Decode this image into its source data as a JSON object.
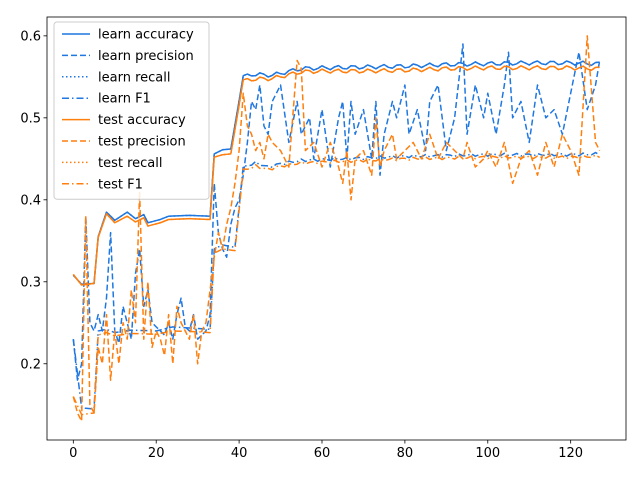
{
  "chart_data": {
    "type": "line",
    "title": "",
    "xlabel": "",
    "ylabel": "",
    "xlim": [
      -6.35,
      133.35
    ],
    "ylim": [
      0.107,
      0.623
    ],
    "xticks": [
      0,
      20,
      40,
      60,
      80,
      100,
      120
    ],
    "yticks": [
      0.2,
      0.3,
      0.4,
      0.5,
      0.6
    ],
    "grid": false,
    "legend": "upper-left",
    "colors": {
      "learn": "#1f77e0",
      "test": "#ff7f0e"
    },
    "anchors": {
      "learn_accuracy": [
        [
          0,
          0.308
        ],
        [
          2,
          0.297
        ],
        [
          5,
          0.298
        ],
        [
          6,
          0.355
        ],
        [
          8,
          0.385
        ],
        [
          10,
          0.375
        ],
        [
          13,
          0.385
        ],
        [
          15,
          0.377
        ],
        [
          17,
          0.382
        ],
        [
          18,
          0.372
        ],
        [
          21,
          0.376
        ],
        [
          23,
          0.38
        ],
        [
          28,
          0.381
        ],
        [
          33,
          0.38
        ],
        [
          34,
          0.456
        ],
        [
          36,
          0.461
        ],
        [
          38,
          0.462
        ],
        [
          41,
          0.55
        ],
        [
          43,
          0.553
        ],
        [
          48,
          0.552
        ],
        [
          55,
          0.56
        ],
        [
          60,
          0.561
        ],
        [
          70,
          0.562
        ],
        [
          80,
          0.563
        ],
        [
          90,
          0.565
        ],
        [
          100,
          0.566
        ],
        [
          110,
          0.567
        ],
        [
          120,
          0.567
        ],
        [
          127,
          0.566
        ]
      ],
      "learn_precision": [
        [
          0,
          0.23
        ],
        [
          1,
          0.18
        ],
        [
          2,
          0.2
        ],
        [
          3,
          0.38
        ],
        [
          4,
          0.25
        ],
        [
          5,
          0.24
        ],
        [
          6,
          0.26
        ],
        [
          7,
          0.24
        ],
        [
          8,
          0.28
        ],
        [
          9,
          0.36
        ],
        [
          10,
          0.24
        ],
        [
          11,
          0.225
        ],
        [
          12,
          0.27
        ],
        [
          13,
          0.25
        ],
        [
          14,
          0.23
        ],
        [
          15,
          0.31
        ],
        [
          16,
          0.34
        ],
        [
          17,
          0.27
        ],
        [
          18,
          0.29
        ],
        [
          19,
          0.25
        ],
        [
          20,
          0.245
        ],
        [
          21,
          0.24
        ],
        [
          22,
          0.235
        ],
        [
          23,
          0.25
        ],
        [
          24,
          0.23
        ],
        [
          25,
          0.26
        ],
        [
          26,
          0.28
        ],
        [
          27,
          0.245
        ],
        [
          28,
          0.24
        ],
        [
          29,
          0.26
        ],
        [
          30,
          0.23
        ],
        [
          31,
          0.235
        ],
        [
          32,
          0.24
        ],
        [
          33,
          0.26
        ],
        [
          34,
          0.42
        ],
        [
          35,
          0.36
        ],
        [
          36,
          0.34
        ],
        [
          37,
          0.33
        ],
        [
          38,
          0.37
        ],
        [
          39,
          0.39
        ],
        [
          40,
          0.4
        ],
        [
          41,
          0.43
        ],
        [
          42,
          0.47
        ],
        [
          43,
          0.52
        ],
        [
          44,
          0.51
        ],
        [
          45,
          0.54
        ],
        [
          46,
          0.49
        ],
        [
          47,
          0.48
        ],
        [
          48,
          0.52
        ],
        [
          50,
          0.54
        ],
        [
          52,
          0.47
        ],
        [
          54,
          0.52
        ],
        [
          55,
          0.48
        ],
        [
          57,
          0.5
        ],
        [
          58,
          0.45
        ],
        [
          60,
          0.51
        ],
        [
          62,
          0.44
        ],
        [
          64,
          0.5
        ],
        [
          65,
          0.52
        ],
        [
          66,
          0.45
        ],
        [
          67,
          0.52
        ],
        [
          68,
          0.48
        ],
        [
          70,
          0.51
        ],
        [
          72,
          0.45
        ],
        [
          73,
          0.52
        ],
        [
          74,
          0.43
        ],
        [
          75,
          0.48
        ],
        [
          77,
          0.52
        ],
        [
          78,
          0.5
        ],
        [
          80,
          0.54
        ],
        [
          81,
          0.48
        ],
        [
          83,
          0.51
        ],
        [
          85,
          0.46
        ],
        [
          86,
          0.52
        ],
        [
          88,
          0.54
        ],
        [
          90,
          0.46
        ],
        [
          92,
          0.5
        ],
        [
          94,
          0.59
        ],
        [
          95,
          0.48
        ],
        [
          97,
          0.54
        ],
        [
          99,
          0.5
        ],
        [
          100,
          0.53
        ],
        [
          102,
          0.48
        ],
        [
          104,
          0.54
        ],
        [
          105,
          0.58
        ],
        [
          106,
          0.5
        ],
        [
          108,
          0.52
        ],
        [
          110,
          0.47
        ],
        [
          112,
          0.54
        ],
        [
          114,
          0.5
        ],
        [
          116,
          0.51
        ],
        [
          118,
          0.48
        ],
        [
          120,
          0.53
        ],
        [
          122,
          0.58
        ],
        [
          124,
          0.51
        ],
        [
          126,
          0.54
        ],
        [
          127,
          0.57
        ]
      ],
      "learn_f1": [
        [
          0,
          0.23
        ],
        [
          2,
          0.146
        ],
        [
          5,
          0.145
        ],
        [
          6,
          0.24
        ],
        [
          8,
          0.242
        ],
        [
          10,
          0.238
        ],
        [
          14,
          0.241
        ],
        [
          20,
          0.24
        ],
        [
          24,
          0.245
        ],
        [
          30,
          0.243
        ],
        [
          33,
          0.242
        ],
        [
          34,
          0.34
        ],
        [
          36,
          0.345
        ],
        [
          39,
          0.342
        ],
        [
          41,
          0.44
        ],
        [
          44,
          0.445
        ],
        [
          47,
          0.44
        ],
        [
          50,
          0.444
        ],
        [
          55,
          0.448
        ],
        [
          60,
          0.449
        ],
        [
          70,
          0.451
        ],
        [
          80,
          0.453
        ],
        [
          90,
          0.454
        ],
        [
          100,
          0.455
        ],
        [
          110,
          0.455
        ],
        [
          120,
          0.455
        ],
        [
          127,
          0.456
        ]
      ],
      "test_accuracy": [
        [
          0,
          0.309
        ],
        [
          2,
          0.296
        ],
        [
          5,
          0.298
        ],
        [
          6,
          0.354
        ],
        [
          8,
          0.383
        ],
        [
          10,
          0.372
        ],
        [
          13,
          0.38
        ],
        [
          15,
          0.373
        ],
        [
          17,
          0.378
        ],
        [
          18,
          0.368
        ],
        [
          21,
          0.372
        ],
        [
          23,
          0.376
        ],
        [
          28,
          0.377
        ],
        [
          33,
          0.376
        ],
        [
          34,
          0.452
        ],
        [
          36,
          0.455
        ],
        [
          38,
          0.456
        ],
        [
          41,
          0.545
        ],
        [
          43,
          0.547
        ],
        [
          48,
          0.548
        ],
        [
          55,
          0.556
        ],
        [
          60,
          0.557
        ],
        [
          70,
          0.557
        ],
        [
          80,
          0.558
        ],
        [
          90,
          0.56
        ],
        [
          100,
          0.561
        ],
        [
          110,
          0.561
        ],
        [
          120,
          0.561
        ],
        [
          127,
          0.56
        ]
      ],
      "test_precision": [
        [
          0,
          0.16
        ],
        [
          1,
          0.14
        ],
        [
          2,
          0.13
        ],
        [
          3,
          0.38
        ],
        [
          4,
          0.15
        ],
        [
          5,
          0.14
        ],
        [
          6,
          0.22
        ],
        [
          7,
          0.2
        ],
        [
          8,
          0.26
        ],
        [
          9,
          0.18
        ],
        [
          10,
          0.24
        ],
        [
          11,
          0.2
        ],
        [
          12,
          0.25
        ],
        [
          13,
          0.23
        ],
        [
          14,
          0.29
        ],
        [
          15,
          0.25
        ],
        [
          16,
          0.41
        ],
        [
          17,
          0.23
        ],
        [
          18,
          0.3
        ],
        [
          19,
          0.22
        ],
        [
          20,
          0.24
        ],
        [
          21,
          0.23
        ],
        [
          22,
          0.21
        ],
        [
          23,
          0.26
        ],
        [
          24,
          0.2
        ],
        [
          25,
          0.27
        ],
        [
          26,
          0.25
        ],
        [
          27,
          0.24
        ],
        [
          28,
          0.23
        ],
        [
          29,
          0.26
        ],
        [
          30,
          0.2
        ],
        [
          31,
          0.24
        ],
        [
          32,
          0.25
        ],
        [
          33,
          0.29
        ],
        [
          34,
          0.33
        ],
        [
          35,
          0.36
        ],
        [
          36,
          0.34
        ],
        [
          37,
          0.37
        ],
        [
          38,
          0.39
        ],
        [
          39,
          0.42
        ],
        [
          40,
          0.46
        ],
        [
          41,
          0.53
        ],
        [
          42,
          0.49
        ],
        [
          43,
          0.48
        ],
        [
          44,
          0.46
        ],
        [
          45,
          0.47
        ],
        [
          46,
          0.45
        ],
        [
          47,
          0.48
        ],
        [
          48,
          0.47
        ],
        [
          50,
          0.46
        ],
        [
          52,
          0.44
        ],
        [
          54,
          0.57
        ],
        [
          55,
          0.56
        ],
        [
          56,
          0.46
        ],
        [
          58,
          0.47
        ],
        [
          60,
          0.44
        ],
        [
          62,
          0.47
        ],
        [
          64,
          0.44
        ],
        [
          65,
          0.42
        ],
        [
          66,
          0.46
        ],
        [
          67,
          0.4
        ],
        [
          68,
          0.45
        ],
        [
          70,
          0.46
        ],
        [
          72,
          0.43
        ],
        [
          73,
          0.5
        ],
        [
          74,
          0.44
        ],
        [
          75,
          0.46
        ],
        [
          77,
          0.48
        ],
        [
          78,
          0.45
        ],
        [
          80,
          0.46
        ],
        [
          82,
          0.47
        ],
        [
          84,
          0.45
        ],
        [
          86,
          0.48
        ],
        [
          88,
          0.45
        ],
        [
          90,
          0.47
        ],
        [
          92,
          0.46
        ],
        [
          94,
          0.45
        ],
        [
          95,
          0.47
        ],
        [
          97,
          0.44
        ],
        [
          99,
          0.45
        ],
        [
          100,
          0.46
        ],
        [
          102,
          0.44
        ],
        [
          104,
          0.47
        ],
        [
          106,
          0.42
        ],
        [
          108,
          0.45
        ],
        [
          110,
          0.46
        ],
        [
          112,
          0.43
        ],
        [
          114,
          0.47
        ],
        [
          116,
          0.44
        ],
        [
          118,
          0.48
        ],
        [
          120,
          0.46
        ],
        [
          122,
          0.43
        ],
        [
          124,
          0.6
        ],
        [
          126,
          0.47
        ],
        [
          127,
          0.46
        ]
      ],
      "test_f1": [
        [
          0,
          0.16
        ],
        [
          2,
          0.138
        ],
        [
          5,
          0.14
        ],
        [
          6,
          0.235
        ],
        [
          8,
          0.238
        ],
        [
          10,
          0.234
        ],
        [
          14,
          0.237
        ],
        [
          20,
          0.236
        ],
        [
          24,
          0.24
        ],
        [
          30,
          0.239
        ],
        [
          33,
          0.238
        ],
        [
          34,
          0.335
        ],
        [
          36,
          0.34
        ],
        [
          39,
          0.338
        ],
        [
          41,
          0.436
        ],
        [
          44,
          0.441
        ],
        [
          47,
          0.437
        ],
        [
          50,
          0.441
        ],
        [
          55,
          0.445
        ],
        [
          60,
          0.446
        ],
        [
          70,
          0.448
        ],
        [
          80,
          0.45
        ],
        [
          90,
          0.451
        ],
        [
          100,
          0.452
        ],
        [
          110,
          0.452
        ],
        [
          120,
          0.452
        ],
        [
          127,
          0.453
        ]
      ]
    },
    "series": [
      {
        "name": "learn accuracy",
        "color": "#1f77e0",
        "style": "solid",
        "source": "learn_accuracy"
      },
      {
        "name": "learn precision",
        "color": "#1f77e0",
        "style": "dashed",
        "source": "learn_precision"
      },
      {
        "name": "learn recall",
        "color": "#1f77e0",
        "style": "dotted",
        "source": "learn_accuracy"
      },
      {
        "name": "learn F1",
        "color": "#1f77e0",
        "style": "dashdot",
        "source": "learn_f1"
      },
      {
        "name": "test accuracy",
        "color": "#ff7f0e",
        "style": "solid",
        "source": "test_accuracy"
      },
      {
        "name": "test precision",
        "color": "#ff7f0e",
        "style": "dashed",
        "source": "test_precision"
      },
      {
        "name": "test recall",
        "color": "#ff7f0e",
        "style": "dotted",
        "source": "test_accuracy"
      },
      {
        "name": "test F1",
        "color": "#ff7f0e",
        "style": "dashdot",
        "source": "test_f1"
      }
    ]
  }
}
